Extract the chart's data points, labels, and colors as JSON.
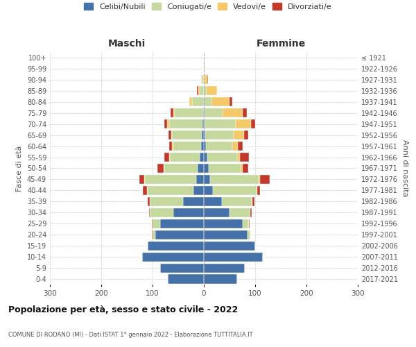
{
  "age_groups": [
    "0-4",
    "5-9",
    "10-14",
    "15-19",
    "20-24",
    "25-29",
    "30-34",
    "35-39",
    "40-44",
    "45-49",
    "50-54",
    "55-59",
    "60-64",
    "65-69",
    "70-74",
    "75-79",
    "80-84",
    "85-89",
    "90-94",
    "95-99",
    "100+"
  ],
  "birth_years": [
    "2017-2021",
    "2012-2016",
    "2007-2011",
    "2002-2006",
    "1997-2001",
    "1992-1996",
    "1987-1991",
    "1982-1986",
    "1977-1981",
    "1972-1976",
    "1967-1971",
    "1962-1966",
    "1957-1961",
    "1952-1956",
    "1947-1951",
    "1942-1946",
    "1937-1941",
    "1932-1936",
    "1927-1931",
    "1922-1926",
    "≤ 1921"
  ],
  "males_celibi": [
    70,
    85,
    120,
    110,
    95,
    85,
    60,
    40,
    20,
    15,
    12,
    8,
    5,
    4,
    3,
    2,
    1,
    0,
    0,
    0,
    0
  ],
  "males_coniugati": [
    0,
    0,
    0,
    0,
    5,
    15,
    45,
    65,
    90,
    100,
    65,
    58,
    55,
    58,
    65,
    55,
    22,
    8,
    4,
    1,
    0
  ],
  "males_vedovi": [
    0,
    0,
    0,
    0,
    0,
    0,
    0,
    0,
    1,
    1,
    1,
    1,
    2,
    2,
    4,
    3,
    5,
    3,
    1,
    0,
    0
  ],
  "males_divorziati": [
    0,
    0,
    0,
    0,
    1,
    1,
    2,
    5,
    8,
    10,
    13,
    10,
    5,
    5,
    5,
    5,
    0,
    2,
    0,
    0,
    0
  ],
  "females_nubili": [
    65,
    80,
    115,
    100,
    85,
    75,
    50,
    35,
    18,
    12,
    10,
    7,
    4,
    3,
    2,
    1,
    0,
    0,
    0,
    0,
    0
  ],
  "females_coniugate": [
    0,
    0,
    0,
    0,
    5,
    12,
    40,
    58,
    85,
    95,
    62,
    58,
    52,
    55,
    60,
    35,
    15,
    5,
    2,
    0,
    0
  ],
  "females_vedove": [
    0,
    0,
    0,
    0,
    0,
    1,
    1,
    1,
    1,
    2,
    3,
    5,
    10,
    20,
    30,
    40,
    35,
    20,
    5,
    1,
    0
  ],
  "females_divorziate": [
    0,
    0,
    0,
    0,
    1,
    1,
    2,
    5,
    5,
    20,
    12,
    18,
    10,
    8,
    8,
    8,
    5,
    1,
    1,
    0,
    0
  ],
  "colors": {
    "celibi": "#4472a8",
    "coniugati": "#c5d89e",
    "vedovi": "#f5c96a",
    "divorziati": "#c0392b"
  },
  "title": "Popolazione per età, sesso e stato civile - 2022",
  "subtitle": "COMUNE DI RODANO (MI) - Dati ISTAT 1° gennaio 2022 - Elaborazione TUTTITALIA.IT",
  "xlabel_left": "Maschi",
  "xlabel_right": "Femmine",
  "ylabel_left": "Fasce di età",
  "ylabel_right": "Anni di nascita",
  "xlim": 300,
  "legend_labels": [
    "Celibi/Nubili",
    "Coniugati/e",
    "Vedovi/e",
    "Divorziati/e"
  ],
  "background_color": "#ffffff",
  "grid_color": "#cccccc"
}
